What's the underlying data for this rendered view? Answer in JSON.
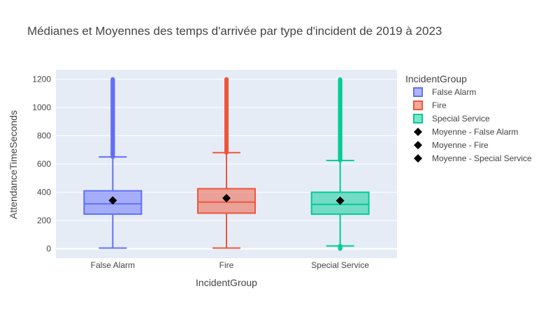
{
  "chart_data": {
    "type": "box",
    "title": "Médianes et Moyennes des temps d'arrivée par type d'incident de 2019 à 2023",
    "xlabel": "IncidentGroup",
    "ylabel": "AttendanceTimeSeconds",
    "ylim": [
      -60,
      1230
    ],
    "yticks": [
      0,
      200,
      400,
      600,
      800,
      1000,
      1200
    ],
    "categories": [
      "False Alarm",
      "Fire",
      "Special Service"
    ],
    "grid": true,
    "legend_position": "right",
    "legend_title": "IncidentGroup",
    "series": [
      {
        "name": "False Alarm",
        "color": "#636efa",
        "min": 5,
        "q1": 245,
        "median": 318,
        "q3": 410,
        "upper_fence": 650,
        "outliers_range": [
          650,
          1200
        ],
        "lower_outliers_range": null
      },
      {
        "name": "Fire",
        "color": "#ef553b",
        "min": 5,
        "q1": 252,
        "median": 330,
        "q3": 425,
        "upper_fence": 680,
        "outliers_range": [
          680,
          1200
        ],
        "lower_outliers_range": null
      },
      {
        "name": "Special Service",
        "color": "#00cc96",
        "min": 20,
        "q1": 245,
        "median": 314,
        "q3": 400,
        "upper_fence": 625,
        "outliers_range": [
          625,
          1200
        ],
        "lower_outliers_range": [
          0,
          20
        ]
      }
    ],
    "means": [
      {
        "name": "Moyenne - False Alarm",
        "category": "False Alarm",
        "value": 342
      },
      {
        "name": "Moyenne - Fire",
        "category": "Fire",
        "value": 358
      },
      {
        "name": "Moyenne - Special Service",
        "category": "Special Service",
        "value": 340
      }
    ],
    "colors": {
      "plot_bg": "#e5ecf6",
      "grid": "#ffffff",
      "mean_marker": "#000000"
    }
  }
}
